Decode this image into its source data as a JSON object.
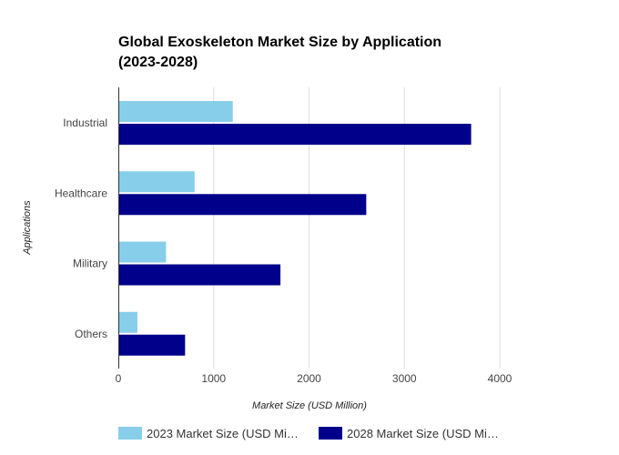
{
  "chart_data": {
    "type": "bar",
    "orientation": "horizontal",
    "title": "Global Exoskeleton Market Size by Application",
    "title_line2": "(2023-2028)",
    "categories": [
      "Industrial",
      "Healthcare",
      "Military",
      "Others"
    ],
    "series": [
      {
        "name": "2023 Market Size (USD Mi…",
        "color": "#87CEEB",
        "values": [
          1200,
          800,
          500,
          200
        ]
      },
      {
        "name": "2028 Market Size (USD Mi…",
        "color": "#00008B",
        "values": [
          3700,
          2600,
          1700,
          700
        ]
      }
    ],
    "xlabel": "Market Size (USD Million)",
    "ylabel": "Applications",
    "xlim": [
      0,
      4000
    ],
    "xticks": [
      0,
      1000,
      2000,
      3000,
      4000
    ],
    "grid": true,
    "legend_position": "bottom"
  }
}
